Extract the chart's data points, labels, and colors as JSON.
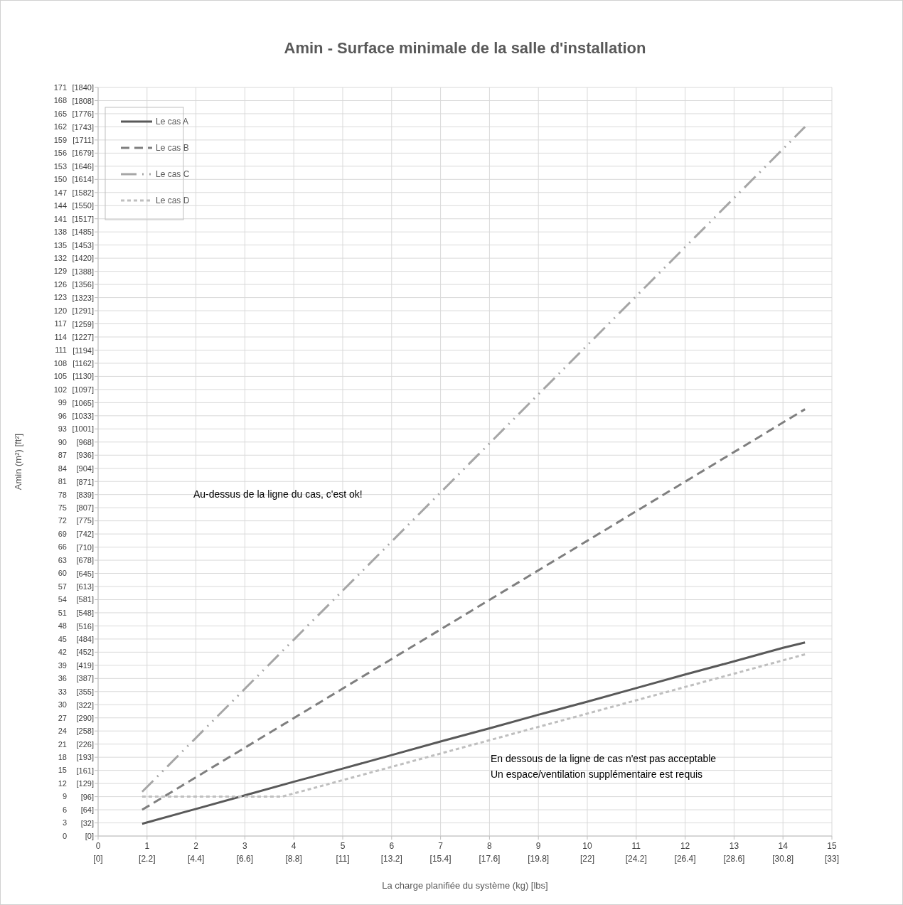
{
  "chart_data": {
    "type": "line",
    "title": "Amin - Surface minimale de la salle d'installation",
    "xlabel": "La charge planifiée du système (kg) [lbs]",
    "ylabel": "Amin (m²) [ft²]",
    "xlim": [
      0,
      15
    ],
    "xticks": [
      0,
      1,
      2,
      3,
      4,
      5,
      6,
      7,
      8,
      9,
      10,
      11,
      12,
      13,
      14,
      15
    ],
    "x2lim": [
      0,
      33
    ],
    "x2ticks": [
      {
        "value": 0,
        "label": "[0]"
      },
      {
        "value": 2.2,
        "label": "[2.2]"
      },
      {
        "value": 4.4,
        "label": "[4.4]"
      },
      {
        "value": 6.6,
        "label": "[6.6]"
      },
      {
        "value": 8.8,
        "label": "[8.8]"
      },
      {
        "value": 11,
        "label": "[11]"
      },
      {
        "value": 13.2,
        "label": "[13.2]"
      },
      {
        "value": 15.4,
        "label": "[15.4]"
      },
      {
        "value": 17.6,
        "label": "[17.6]"
      },
      {
        "value": 19.8,
        "label": "[19.8]"
      },
      {
        "value": 22,
        "label": "[22]"
      },
      {
        "value": 24.2,
        "label": "[24.2]"
      },
      {
        "value": 26.4,
        "label": "[26.4]"
      },
      {
        "value": 28.6,
        "label": "[28.6]"
      },
      {
        "value": 30.8,
        "label": "[30.8]"
      },
      {
        "value": 33,
        "label": "[33]"
      }
    ],
    "ylim": [
      0,
      171
    ],
    "yticks": [
      0,
      3,
      6,
      9,
      12,
      15,
      18,
      21,
      24,
      27,
      30,
      33,
      36,
      39,
      42,
      45,
      48,
      51,
      54,
      57,
      60,
      63,
      66,
      69,
      72,
      75,
      78,
      81,
      84,
      87,
      90,
      93,
      96,
      99,
      102,
      105,
      108,
      111,
      114,
      117,
      120,
      123,
      126,
      129,
      132,
      135,
      138,
      141,
      144,
      147,
      150,
      153,
      156,
      159,
      162,
      165,
      168,
      171
    ],
    "y2lim": [
      0,
      1840.6
    ],
    "y2ticks": [
      {
        "value": 0,
        "label": "[0]"
      },
      {
        "value": 32,
        "label": "[32]"
      },
      {
        "value": 64,
        "label": "[64]"
      },
      {
        "value": 96,
        "label": "[96]"
      },
      {
        "value": 129,
        "label": "[129]"
      },
      {
        "value": 161,
        "label": "[161]"
      },
      {
        "value": 193,
        "label": "[193]"
      },
      {
        "value": 226,
        "label": "[226]"
      },
      {
        "value": 258,
        "label": "[258]"
      },
      {
        "value": 290,
        "label": "[290]"
      },
      {
        "value": 322,
        "label": "[322]"
      },
      {
        "value": 355,
        "label": "[355]"
      },
      {
        "value": 387,
        "label": "[387]"
      },
      {
        "value": 419,
        "label": "[419]"
      },
      {
        "value": 452,
        "label": "[452]"
      },
      {
        "value": 484,
        "label": "[484]"
      },
      {
        "value": 516,
        "label": "[516]"
      },
      {
        "value": 548,
        "label": "[548]"
      },
      {
        "value": 581,
        "label": "[581]"
      },
      {
        "value": 613,
        "label": "[613]"
      },
      {
        "value": 645,
        "label": "[645]"
      },
      {
        "value": 678,
        "label": "[678]"
      },
      {
        "value": 710,
        "label": "[710]"
      },
      {
        "value": 742,
        "label": "[742]"
      },
      {
        "value": 775,
        "label": "[775]"
      },
      {
        "value": 807,
        "label": "[807]"
      },
      {
        "value": 839,
        "label": "[839]"
      },
      {
        "value": 871,
        "label": "[871]"
      },
      {
        "value": 904,
        "label": "[904]"
      },
      {
        "value": 936,
        "label": "[936]"
      },
      {
        "value": 968,
        "label": "[968]"
      },
      {
        "value": 1001,
        "label": "[1001]"
      },
      {
        "value": 1033,
        "label": "[1033]"
      },
      {
        "value": 1065,
        "label": "[1065]"
      },
      {
        "value": 1097,
        "label": "[1097]"
      },
      {
        "value": 1130,
        "label": "[1130]"
      },
      {
        "value": 1162,
        "label": "[1162]"
      },
      {
        "value": 1194,
        "label": "[1194]"
      },
      {
        "value": 1227,
        "label": "[1227]"
      },
      {
        "value": 1259,
        "label": "[1259]"
      },
      {
        "value": 1291,
        "label": "[1291]"
      },
      {
        "value": 1323,
        "label": "[1323]"
      },
      {
        "value": 1356,
        "label": "[1356]"
      },
      {
        "value": 1388,
        "label": "[1388]"
      },
      {
        "value": 1420,
        "label": "[1420]"
      },
      {
        "value": 1453,
        "label": "[1453]"
      },
      {
        "value": 1485,
        "label": "[1485]"
      },
      {
        "value": 1517,
        "label": "[1517]"
      },
      {
        "value": 1550,
        "label": "[1550]"
      },
      {
        "value": 1582,
        "label": "[1582]"
      },
      {
        "value": 1614,
        "label": "[1614]"
      },
      {
        "value": 1646,
        "label": "[1646]"
      },
      {
        "value": 1679,
        "label": "[1679]"
      },
      {
        "value": 1711,
        "label": "[1711]"
      },
      {
        "value": 1743,
        "label": "[1743]"
      },
      {
        "value": 1776,
        "label": "[1776]"
      },
      {
        "value": 1808,
        "label": "[1808]"
      },
      {
        "value": 1840,
        "label": "[1840]"
      }
    ],
    "grid": true,
    "legend": "top left",
    "marker": "none",
    "series": [
      {
        "name": "Le cas A",
        "color": "#595959",
        "line_style": "solid",
        "x": [
          0.9,
          2,
          3,
          4,
          5,
          6,
          7,
          8,
          9,
          10,
          11,
          12,
          13,
          14,
          14.45
        ],
        "values": [
          2.8,
          6.2,
          9.3,
          12.4,
          15.4,
          18.5,
          21.6,
          24.6,
          27.7,
          30.7,
          33.8,
          36.9,
          39.9,
          43,
          44.2
        ]
      },
      {
        "name": "Le cas B",
        "color": "#7f7f7f",
        "line_style": "dashed",
        "x": [
          0.9,
          14.45
        ],
        "values": [
          6,
          97.5
        ]
      },
      {
        "name": "Le cas C",
        "color": "#a6a6a6",
        "line_style": "dashdotdot",
        "x": [
          0.9,
          14.45
        ],
        "values": [
          10.1,
          162
        ]
      },
      {
        "name": "Le cas D",
        "color": "#bfbfbf",
        "line_style": "dotted",
        "x": [
          0.9,
          3.76,
          14.45
        ],
        "values": [
          9,
          9,
          41.5
        ]
      }
    ],
    "annotations": [
      "Au-dessus de la ligne du cas, c'est ok!",
      "En dessous de la ligne de cas n'est pas acceptable\nUn espace/ventilation supplémentaire est requis"
    ]
  }
}
